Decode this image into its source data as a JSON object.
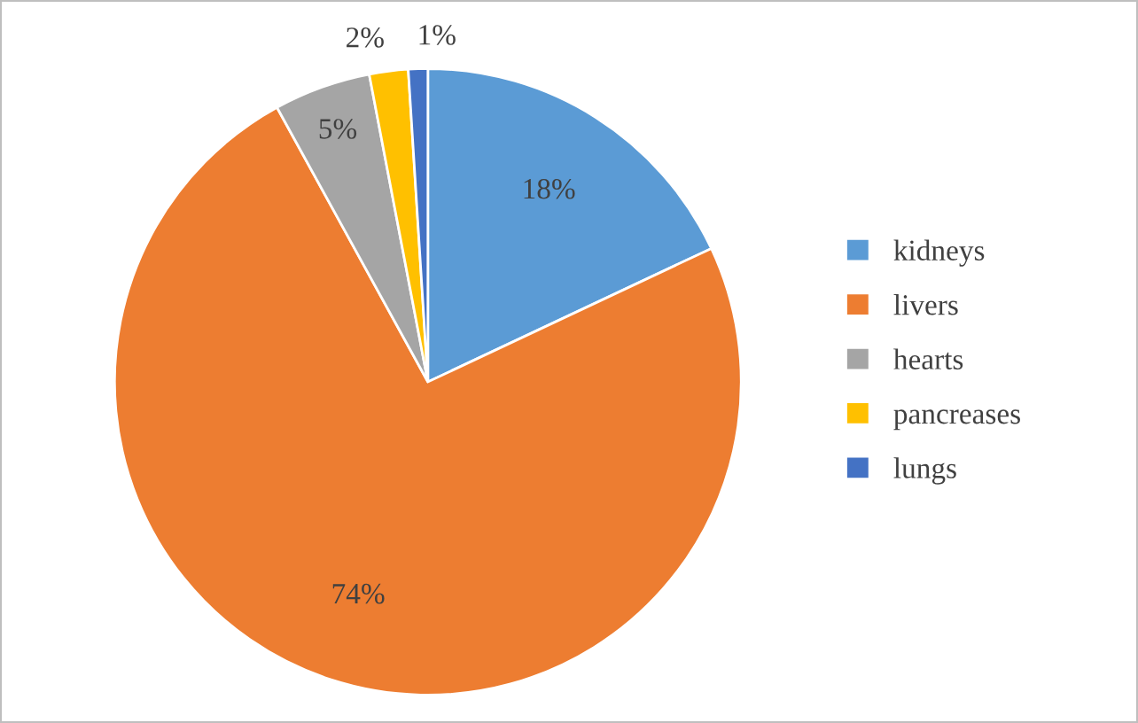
{
  "chart_data": {
    "type": "pie",
    "categories": [
      "kidneys",
      "livers",
      "hearts",
      "pancreases",
      "lungs"
    ],
    "values": [
      18,
      74,
      5,
      2,
      1
    ],
    "colors": [
      "#5b9bd5",
      "#ed7d31",
      "#a5a5a5",
      "#ffc000",
      "#4472c4"
    ],
    "value_labels": [
      "18%",
      "74%",
      "5%",
      "2%",
      "1%"
    ],
    "legend": "right"
  }
}
